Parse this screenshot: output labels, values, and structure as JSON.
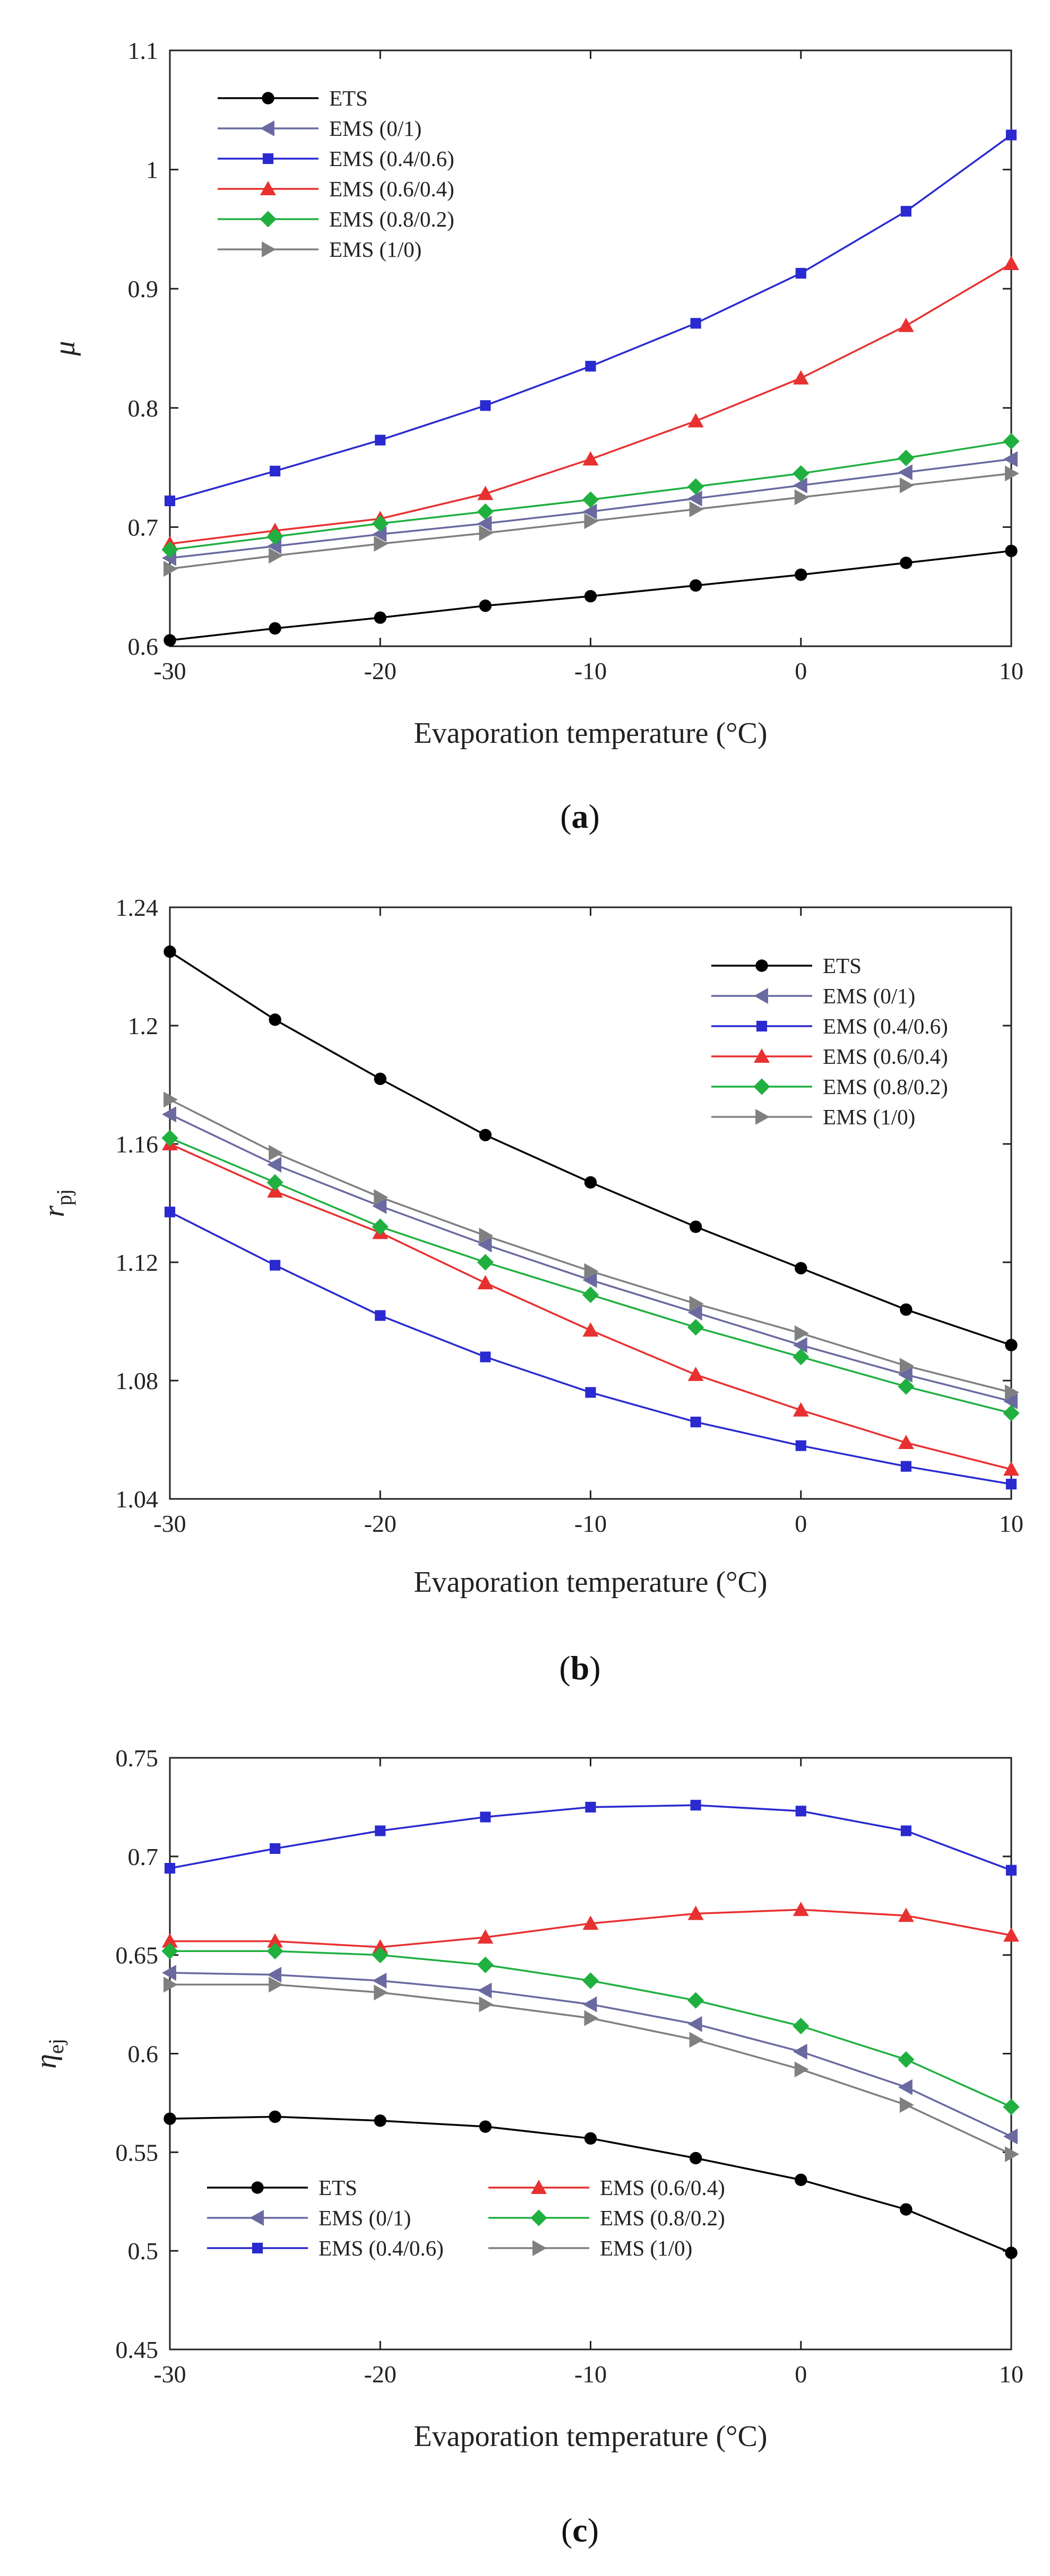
{
  "chart_data": [
    {
      "id": "a",
      "type": "line",
      "caption_prefix": "(",
      "caption_letter": "a",
      "caption_suffix": ")",
      "xlabel": "Evaporation temperature (°C)",
      "ylabel": "μ",
      "ylabel_sub": "",
      "x": [
        -30,
        -25,
        -20,
        -15,
        -10,
        -5,
        0,
        5,
        10
      ],
      "xticks": [
        "-30",
        "-20",
        "-10",
        "0",
        "10"
      ],
      "xlim": [
        -30,
        10
      ],
      "ylim": [
        0.6,
        1.1
      ],
      "yticks": [
        "0.6",
        "0.7",
        "0.8",
        "0.9",
        "1",
        "1.1"
      ],
      "legend_loc": "top-left",
      "series": [
        {
          "name": "ETS",
          "values": [
            0.605,
            0.615,
            0.624,
            0.634,
            0.642,
            0.651,
            0.66,
            0.67,
            0.68
          ]
        },
        {
          "name": "EMS (0/1)",
          "values": [
            0.674,
            0.684,
            0.694,
            0.703,
            0.713,
            0.724,
            0.735,
            0.746,
            0.757
          ]
        },
        {
          "name": "EMS (0.4/0.6)",
          "values": [
            0.722,
            0.747,
            0.773,
            0.802,
            0.835,
            0.871,
            0.913,
            0.965,
            1.029
          ]
        },
        {
          "name": "EMS (0.6/0.4)",
          "values": [
            0.686,
            0.697,
            0.707,
            0.728,
            0.757,
            0.789,
            0.825,
            0.869,
            0.921
          ]
        },
        {
          "name": "EMS (0.8/0.2)",
          "values": [
            0.681,
            0.692,
            0.703,
            0.713,
            0.723,
            0.734,
            0.745,
            0.758,
            0.772
          ]
        },
        {
          "name": "EMS (1/0)",
          "values": [
            0.665,
            0.676,
            0.686,
            0.695,
            0.705,
            0.715,
            0.725,
            0.735,
            0.745
          ]
        }
      ]
    },
    {
      "id": "b",
      "type": "line",
      "caption_prefix": "(",
      "caption_letter": "b",
      "caption_suffix": ")",
      "xlabel": "Evaporation temperature (°C)",
      "ylabel": "r",
      "ylabel_sub": "pj",
      "x": [
        -30,
        -25,
        -20,
        -15,
        -10,
        -5,
        0,
        5,
        10
      ],
      "xticks": [
        "-30",
        "-20",
        "-10",
        "0",
        "10"
      ],
      "xlim": [
        -30,
        10
      ],
      "ylim": [
        1.04,
        1.24
      ],
      "yticks": [
        "1.04",
        "1.08",
        "1.12",
        "1.16",
        "1.2",
        "1.24"
      ],
      "legend_loc": "top-right",
      "series": [
        {
          "name": "ETS",
          "values": [
            1.225,
            1.202,
            1.182,
            1.163,
            1.147,
            1.132,
            1.118,
            1.104,
            1.092
          ]
        },
        {
          "name": "EMS (0/1)",
          "values": [
            1.17,
            1.153,
            1.139,
            1.126,
            1.114,
            1.103,
            1.092,
            1.082,
            1.073
          ]
        },
        {
          "name": "EMS (0.4/0.6)",
          "values": [
            1.137,
            1.119,
            1.102,
            1.088,
            1.076,
            1.066,
            1.058,
            1.051,
            1.045
          ]
        },
        {
          "name": "EMS (0.6/0.4)",
          "values": [
            1.16,
            1.144,
            1.13,
            1.113,
            1.097,
            1.082,
            1.07,
            1.059,
            1.05
          ]
        },
        {
          "name": "EMS (0.8/0.2)",
          "values": [
            1.162,
            1.147,
            1.132,
            1.12,
            1.109,
            1.098,
            1.088,
            1.078,
            1.069
          ]
        },
        {
          "name": "EMS (1/0)",
          "values": [
            1.175,
            1.157,
            1.142,
            1.129,
            1.117,
            1.106,
            1.096,
            1.085,
            1.076
          ]
        }
      ]
    },
    {
      "id": "c",
      "type": "line",
      "caption_prefix": "(",
      "caption_letter": "c",
      "caption_suffix": ")",
      "xlabel": "Evaporation temperature (°C)",
      "ylabel": "η",
      "ylabel_sub": "ej",
      "x": [
        -30,
        -25,
        -20,
        -15,
        -10,
        -5,
        0,
        5,
        10
      ],
      "xticks": [
        "-30",
        "-20",
        "-10",
        "0",
        "10"
      ],
      "xlim": [
        -30,
        10
      ],
      "ylim": [
        0.45,
        0.75
      ],
      "yticks": [
        "0.45",
        "0.5",
        "0.55",
        "0.6",
        "0.65",
        "0.7",
        "0.75"
      ],
      "legend_loc": "bottom-left",
      "series": [
        {
          "name": "ETS",
          "values": [
            0.567,
            0.568,
            0.566,
            0.563,
            0.557,
            0.547,
            0.536,
            0.521,
            0.499
          ]
        },
        {
          "name": "EMS (0/1)",
          "values": [
            0.641,
            0.64,
            0.637,
            0.632,
            0.625,
            0.615,
            0.601,
            0.583,
            0.558
          ]
        },
        {
          "name": "EMS (0.4/0.6)",
          "values": [
            0.694,
            0.704,
            0.713,
            0.72,
            0.725,
            0.726,
            0.723,
            0.713,
            0.693
          ]
        },
        {
          "name": "EMS (0.6/0.4)",
          "values": [
            0.657,
            0.657,
            0.654,
            0.659,
            0.666,
            0.671,
            0.673,
            0.67,
            0.66
          ]
        },
        {
          "name": "EMS (0.8/0.2)",
          "values": [
            0.652,
            0.652,
            0.65,
            0.645,
            0.637,
            0.627,
            0.614,
            0.597,
            0.573
          ]
        },
        {
          "name": "EMS (1/0)",
          "values": [
            0.635,
            0.635,
            0.631,
            0.625,
            0.618,
            0.607,
            0.592,
            0.574,
            0.549
          ]
        }
      ]
    }
  ],
  "series_style": {
    "ETS": {
      "color": "#000000",
      "marker": "circle"
    },
    "EMS (0/1)": {
      "color": "#6a6aa0",
      "marker": "triangle-left"
    },
    "EMS (0.4/0.6)": {
      "color": "#2a2ad0",
      "marker": "square"
    },
    "EMS (0.6/0.4)": {
      "color": "#e83030",
      "marker": "triangle-up"
    },
    "EMS (0.8/0.2)": {
      "color": "#20b040",
      "marker": "diamond"
    },
    "EMS (1/0)": {
      "color": "#808080",
      "marker": "triangle-right"
    }
  }
}
